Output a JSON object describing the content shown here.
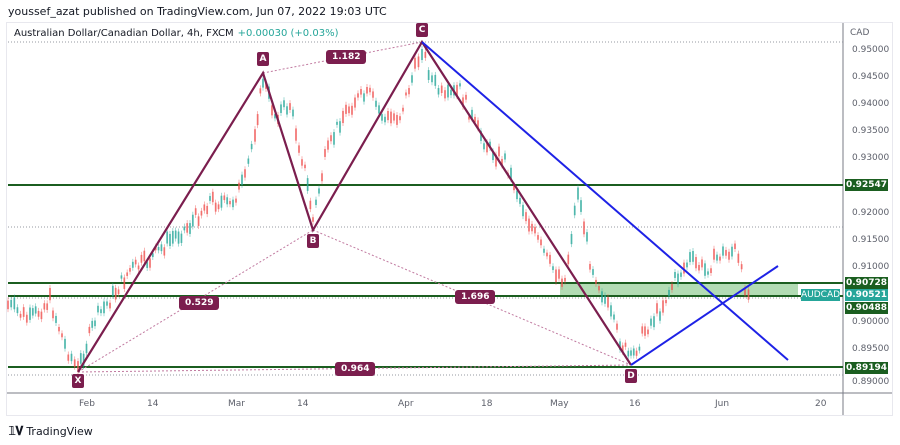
{
  "header": {
    "published": "youssef_azat published on TradingView.com, Jun 07, 2022 19:03 UTC"
  },
  "legend": {
    "symbol_desc": "Australian Dollar/Canadian Dollar, 4h, FXCM",
    "change": "+0.00030 (+0.03%)"
  },
  "price_axis": {
    "currency": "CAD",
    "ticks": [
      "0.95000",
      "0.94500",
      "0.94000",
      "0.93500",
      "0.93000",
      "0.92000",
      "0.91500",
      "0.91000",
      "0.90000",
      "0.89500",
      "0.89000"
    ]
  },
  "price_tags": {
    "r1": "0.92547",
    "zone_top": "0.90728",
    "last": "0.90521",
    "zone_bottom": "0.90488",
    "support": "0.89194"
  },
  "symbol_tag": "AUDCAD",
  "time_axis": [
    "Feb",
    "14",
    "Mar",
    "14",
    "Apr",
    "18",
    "May",
    "16",
    "Jun",
    "20"
  ],
  "pattern": {
    "points": {
      "X": "X",
      "A": "A",
      "B": "B",
      "C": "C",
      "D": "D"
    },
    "ratios": {
      "xb": "0.529",
      "ac": "1.182",
      "bd": "1.696",
      "xd": "0.964"
    }
  },
  "colors": {
    "pattern": "#7b1e4e",
    "trendline": "#1e22e6",
    "level": "#1b5e20",
    "zone_fill": "#a5d6a7",
    "up": "#26a69a",
    "down": "#ef5350"
  },
  "footer": {
    "brand": "TradingView"
  }
}
